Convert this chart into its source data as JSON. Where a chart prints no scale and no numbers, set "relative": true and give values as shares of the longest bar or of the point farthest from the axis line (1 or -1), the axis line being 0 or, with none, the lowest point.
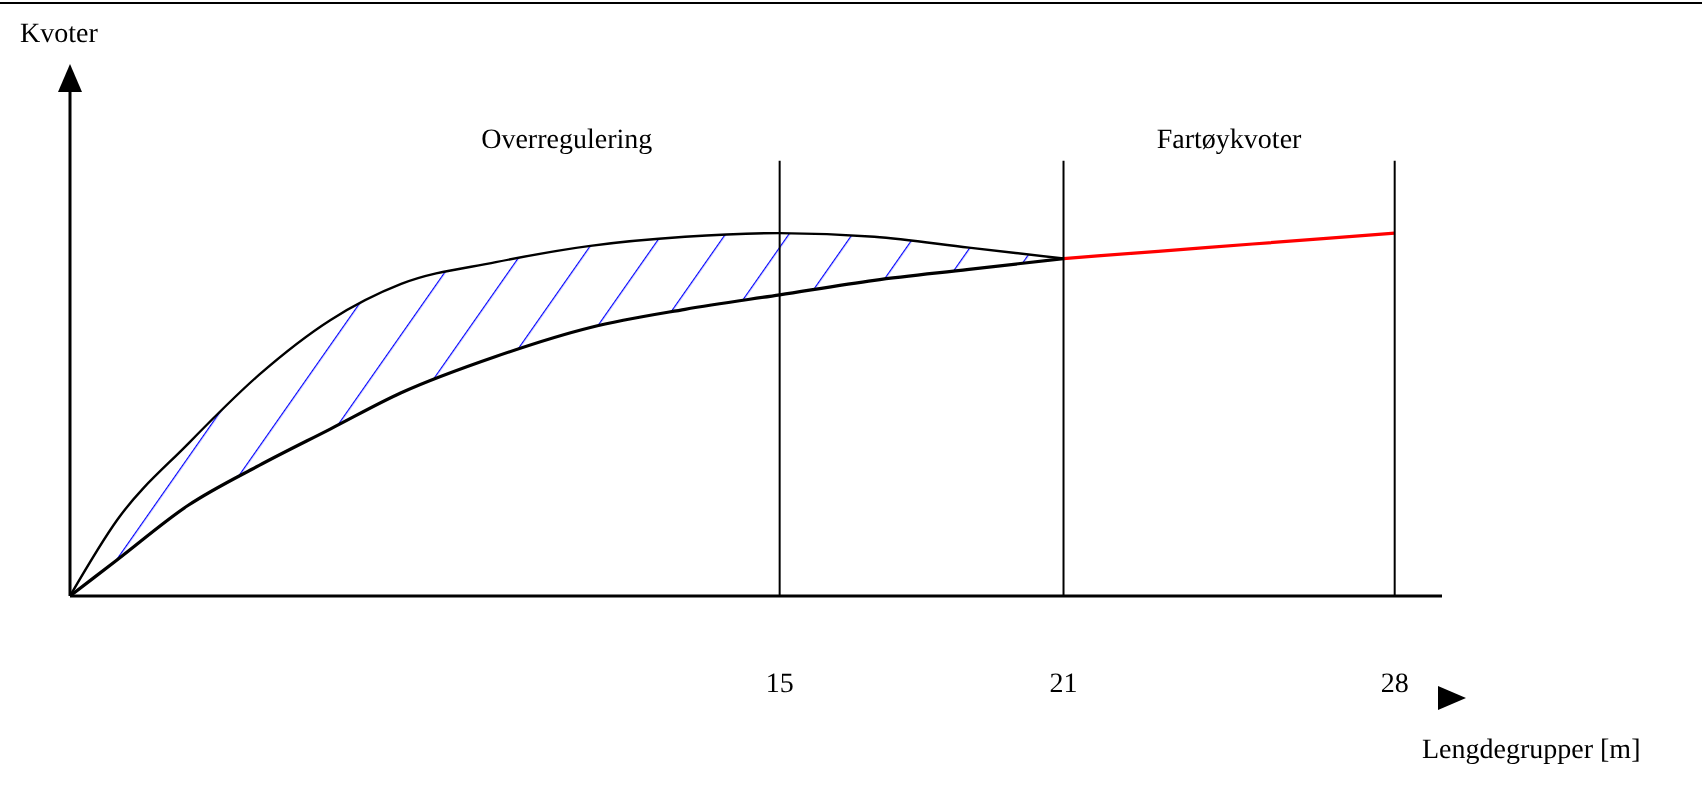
{
  "chart_data": {
    "type": "line",
    "relative": true,
    "xlabel": "Lengdegrupper [m]",
    "annotations": [
      "Overregulering",
      "Fartøykvoter",
      "Kvoter"
    ],
    "xlim": [
      0,
      29
    ],
    "xticks": [
      15,
      21,
      28
    ],
    "x": [
      0,
      1,
      2.5,
      4,
      5.5,
      7,
      9,
      11,
      13,
      15,
      17,
      19,
      21
    ],
    "series": [
      {
        "color": "#000000",
        "values": [
          0,
          0.21,
          0.42,
          0.61,
          0.76,
          0.86,
          0.92,
          0.965,
          0.99,
          1.0,
          0.99,
          0.96,
          0.93
        ],
        "lower": [
          0,
          0.1,
          0.25,
          0.36,
          0.46,
          0.56,
          0.66,
          0.74,
          0.79,
          0.83,
          0.87,
          0.9,
          0.93
        ],
        "upper": [
          0,
          0.21,
          0.42,
          0.61,
          0.76,
          0.86,
          0.92,
          0.965,
          0.99,
          1.0,
          0.99,
          0.96,
          0.93
        ]
      },
      {
        "color": "#000000",
        "values": [
          0,
          0.1,
          0.25,
          0.36,
          0.46,
          0.56,
          0.66,
          0.74,
          0.79,
          0.83,
          0.87,
          0.9,
          0.93
        ]
      },
      {
        "color": "#ff0000",
        "x": [
          21,
          23,
          25,
          28
        ],
        "values": [
          0.93,
          0.95,
          0.97,
          1.0
        ]
      }
    ],
    "ref_lines": [
      {
        "axis": "x",
        "value": 15,
        "color": "#000000"
      },
      {
        "axis": "x",
        "value": 21,
        "color": "#000000"
      },
      {
        "axis": "x",
        "value": 28,
        "color": "#000000"
      }
    ]
  }
}
